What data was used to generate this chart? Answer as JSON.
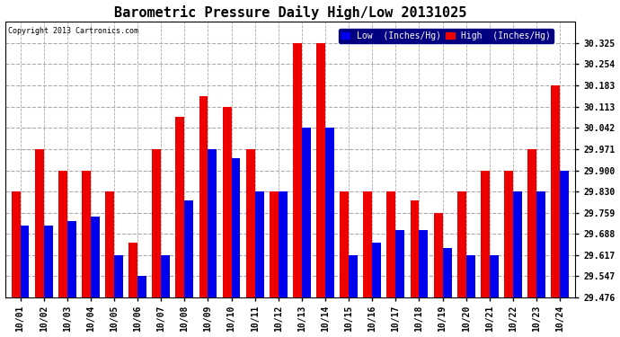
{
  "title": "Barometric Pressure Daily High/Low 20131025",
  "copyright": "Copyright 2013 Cartronics.com",
  "dates": [
    "10/01",
    "10/02",
    "10/03",
    "10/04",
    "10/05",
    "10/06",
    "10/07",
    "10/08",
    "10/09",
    "10/10",
    "10/11",
    "10/12",
    "10/13",
    "10/14",
    "10/15",
    "10/16",
    "10/17",
    "10/18",
    "10/19",
    "10/20",
    "10/21",
    "10/22",
    "10/23",
    "10/24"
  ],
  "low": [
    29.716,
    29.716,
    29.73,
    29.745,
    29.617,
    29.547,
    29.617,
    29.8,
    29.971,
    29.94,
    29.83,
    29.83,
    30.042,
    30.042,
    29.617,
    29.659,
    29.7,
    29.7,
    29.64,
    29.617,
    29.617,
    29.83,
    29.83,
    29.9
  ],
  "high": [
    29.83,
    29.971,
    29.9,
    29.9,
    29.83,
    29.659,
    29.971,
    30.078,
    30.148,
    30.113,
    29.971,
    29.83,
    30.325,
    30.325,
    29.83,
    29.83,
    29.83,
    29.8,
    29.759,
    29.83,
    29.9,
    29.9,
    29.971,
    30.183
  ],
  "ylim_min": 29.476,
  "ylim_max": 30.396,
  "yticks": [
    29.476,
    29.547,
    29.617,
    29.688,
    29.759,
    29.83,
    29.9,
    29.971,
    30.042,
    30.113,
    30.183,
    30.254,
    30.325
  ],
  "bar_width": 0.38,
  "low_color": "#0000ee",
  "high_color": "#ee0000",
  "bg_color": "#ffffff",
  "grid_color": "#aaaaaa",
  "title_fontsize": 11,
  "tick_fontsize": 7,
  "legend_low_label": "Low  (Inches/Hg)",
  "legend_high_label": "High  (Inches/Hg)"
}
